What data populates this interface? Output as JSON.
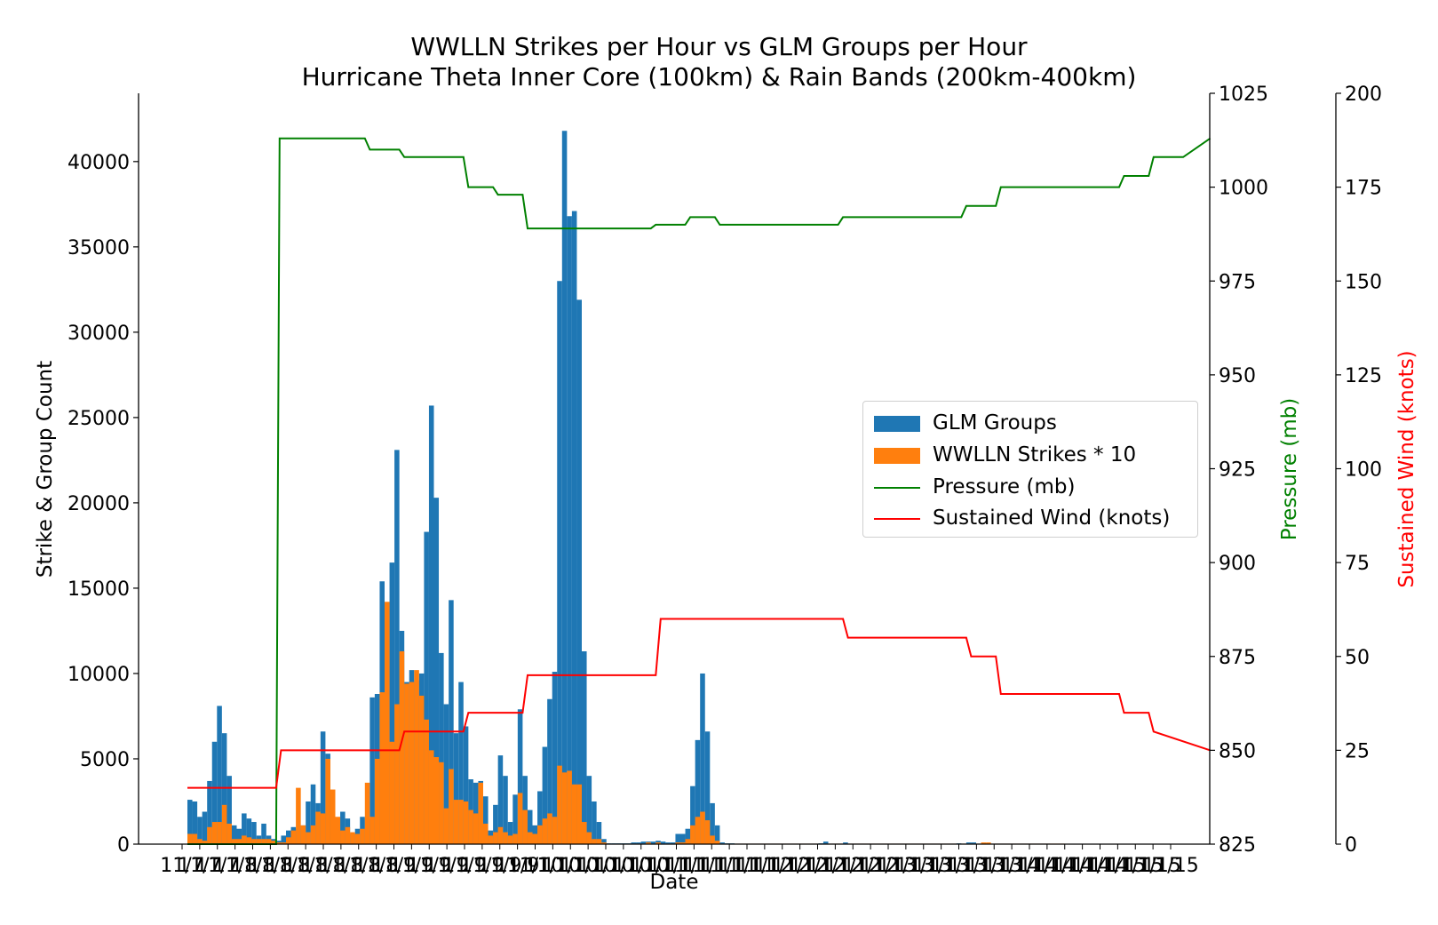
{
  "chart_data": {
    "type": "bar",
    "title": "WWLLN Strikes per Hour vs GLM Groups per Hour",
    "subtitle": "Hurricane Theta Inner Core (100km) & Rain Bands (200km-400km)",
    "xlabel": "Date",
    "ylabel": "Strike & Group Count",
    "ylabel_pressure": "Pressure (mb)",
    "ylabel_wind": "Sustained Wind (knots)",
    "ylim": [
      0,
      44000
    ],
    "ylim_pressure": [
      825,
      1025
    ],
    "ylim_wind": [
      0,
      200
    ],
    "yticks": [
      "0",
      "5000",
      "10000",
      "15000",
      "20000",
      "25000",
      "30000",
      "35000",
      "40000"
    ],
    "yticks_pressure": [
      "825",
      "850",
      "875",
      "900",
      "925",
      "950",
      "975",
      "1000",
      "1025"
    ],
    "yticks_wind": [
      "0",
      "25",
      "50",
      "75",
      "100",
      "125",
      "150",
      "175",
      "200"
    ],
    "xtick_labels": [
      "11/7",
      "11/7",
      "11/7",
      "11/8",
      "11/8",
      "11/8",
      "11/8",
      "11/8",
      "11/8",
      "11/8",
      "11/8",
      "11/8",
      "11/9",
      "11/9",
      "11/9",
      "11/9",
      "11/9",
      "11/9",
      "11/9",
      "11/9",
      "11/10",
      "11/10",
      "11/10",
      "11/10",
      "11/10",
      "11/10",
      "11/10",
      "11/11",
      "11/11",
      "11/11",
      "11/11",
      "11/11",
      "11/11",
      "11/12",
      "11/12",
      "11/12",
      "11/12",
      "11/12",
      "11/12",
      "11/12",
      "11/13",
      "11/13",
      "11/13",
      "11/13",
      "11/13",
      "11/13",
      "11/13",
      "11/14",
      "11/14",
      "11/14",
      "11/14",
      "11/14",
      "11/14",
      "11/15",
      "11/15",
      "11/15",
      "11/15"
    ],
    "legend": [
      "GLM Groups",
      "WWLLN Strikes * 10",
      "Pressure (mb)",
      "Sustained Wind (knots)"
    ],
    "legend_position": "center-right",
    "grid": false,
    "colors": {
      "glm": "#1f77b4",
      "wwlln": "#ff7f0e",
      "pressure": "#008000",
      "wind": "#ff0000"
    },
    "series": [
      {
        "name": "GLM Groups",
        "axis": "left",
        "values": [
          2600,
          2500,
          1600,
          1900,
          3700,
          6000,
          8100,
          6500,
          4000,
          1100,
          900,
          1800,
          1500,
          1300,
          500,
          1200,
          500,
          300,
          200,
          500,
          800,
          1000,
          900,
          1100,
          2500,
          3500,
          2400,
          6600,
          5300,
          2200,
          1500,
          1900,
          1500,
          600,
          900,
          1600,
          1500,
          8600,
          8800,
          15400,
          10500,
          16500,
          23100,
          12500,
          9500,
          10200,
          9600,
          10000,
          18300,
          25700,
          20300,
          11200,
          8200,
          14300,
          6500,
          9500,
          6900,
          3800,
          3600,
          3700,
          2800,
          800,
          2300,
          5200,
          4000,
          1300,
          2900,
          7900,
          4000,
          2000,
          1100,
          3100,
          5700,
          8500,
          10100,
          33000,
          41800,
          36800,
          37100,
          31900,
          11300,
          4000,
          2500,
          1300,
          300,
          50,
          50,
          50,
          50,
          50,
          100,
          100,
          150,
          150,
          150,
          200,
          150,
          100,
          100,
          600,
          600,
          900,
          3400,
          6100,
          10000,
          6600,
          2400,
          1100,
          100,
          50,
          50,
          30,
          30,
          30,
          30,
          30,
          30,
          30,
          30,
          30,
          30,
          30,
          30,
          30,
          30,
          30,
          30,
          30,
          50,
          150,
          30,
          30,
          30,
          100,
          30,
          30,
          30,
          30,
          30,
          30,
          30,
          30,
          30,
          30,
          30,
          30,
          30,
          30,
          30,
          30,
          30,
          30,
          30,
          30,
          30,
          30,
          50,
          30,
          100,
          100,
          30,
          30,
          30,
          30,
          30,
          30,
          30,
          30,
          30,
          30,
          30,
          30,
          30,
          30,
          30
        ]
      },
      {
        "name": "WWLLN Strikes * 10",
        "axis": "left",
        "values": [
          600,
          600,
          300,
          200,
          1000,
          1300,
          1300,
          2300,
          1200,
          300,
          300,
          500,
          400,
          300,
          300,
          300,
          300,
          200,
          100,
          100,
          400,
          800,
          3300,
          1100,
          700,
          1100,
          1900,
          1800,
          5000,
          3200,
          1600,
          800,
          1000,
          700,
          600,
          900,
          3600,
          1600,
          5000,
          8900,
          14200,
          6000,
          8200,
          11300,
          9400,
          9500,
          10200,
          8700,
          7300,
          5500,
          5100,
          4800,
          2100,
          4400,
          2600,
          2600,
          2500,
          2000,
          1800,
          3600,
          1200,
          500,
          700,
          1000,
          700,
          500,
          600,
          3000,
          2000,
          700,
          600,
          1100,
          1500,
          1800,
          1600,
          4600,
          4200,
          4300,
          3500,
          3500,
          1300,
          700,
          300,
          300,
          100,
          30,
          30,
          30,
          30,
          30,
          30,
          30,
          30,
          100,
          30,
          100,
          30,
          30,
          30,
          100,
          100,
          300,
          1100,
          1600,
          1900,
          1400,
          500,
          200,
          30,
          30,
          30,
          30,
          30,
          30,
          30,
          30,
          30,
          30,
          30,
          30,
          30,
          30,
          30,
          30,
          30,
          30,
          30,
          30,
          30,
          30,
          30,
          30,
          30,
          30,
          30,
          30,
          30,
          30,
          30,
          30,
          30,
          30,
          30,
          30,
          30,
          30,
          30,
          30,
          30,
          30,
          30,
          30,
          30,
          30,
          30,
          30,
          30,
          30,
          30,
          30,
          30,
          100,
          100,
          30,
          30,
          30,
          30,
          30,
          30,
          30,
          30,
          30,
          30,
          30,
          30,
          30,
          30,
          30
        ]
      },
      {
        "name": "Pressure (mb)",
        "axis": "pressure",
        "type": "line",
        "x": [
          0,
          18,
          18.7,
          36,
          37,
          43,
          44,
          56,
          57,
          62,
          63,
          68,
          69,
          94,
          95,
          101,
          102,
          107,
          108,
          132,
          133,
          157,
          158,
          164,
          165,
          170,
          171,
          189,
          190,
          195,
          196,
          201,
          202,
          207.5
        ],
        "values": [
          825,
          825,
          1013,
          1013,
          1010,
          1010,
          1008,
          1008,
          1000,
          1000,
          998,
          998,
          989,
          989,
          990,
          990,
          992,
          992,
          990,
          990,
          992,
          992,
          995,
          995,
          1000,
          1000,
          1000,
          1000,
          1003,
          1003,
          1008,
          1008,
          1008,
          1013
        ]
      },
      {
        "name": "Sustained Wind (knots)",
        "axis": "wind",
        "type": "line",
        "x": [
          0,
          18,
          19,
          37,
          38,
          43,
          44,
          56,
          57,
          68,
          69,
          95,
          96,
          133,
          134,
          158,
          159,
          164,
          165,
          189,
          190,
          195,
          196,
          207.5
        ],
        "values": [
          15,
          15,
          25,
          25,
          25,
          25,
          30,
          30,
          35,
          35,
          45,
          45,
          60,
          60,
          55,
          55,
          50,
          50,
          40,
          40,
          35,
          35,
          30,
          25
        ]
      }
    ]
  }
}
